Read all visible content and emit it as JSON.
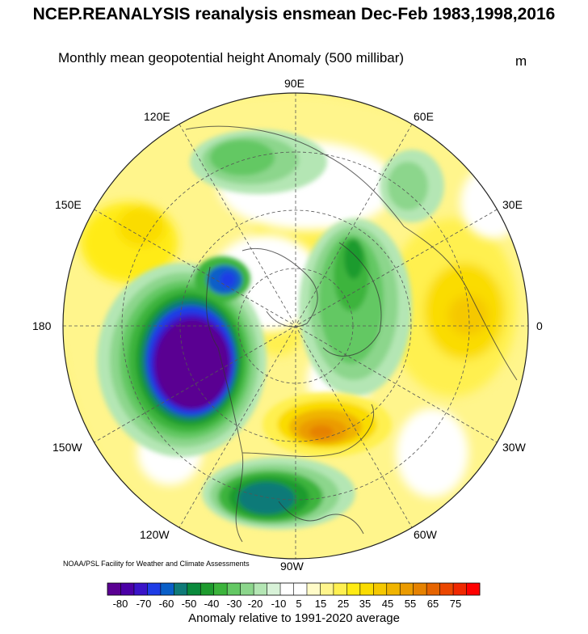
{
  "header": {
    "title": "NCEP.REANALYSIS reanalysis ensmean Dec-Feb 1983,1998,2016",
    "subtitle": "Monthly mean geopotential height Anomaly (500 millibar)",
    "units": "m"
  },
  "map": {
    "projection": "north polar stereographic",
    "lon_labels": [
      "90E",
      "60E",
      "30E",
      "0",
      "30W",
      "60W",
      "90W",
      "120W",
      "150W",
      "180",
      "150E",
      "120E"
    ]
  },
  "credit": "NOAA/PSL Facility for Weather and Climate Assessments",
  "colorbar": {
    "labels": [
      "-80",
      "-70",
      "-60",
      "-50",
      "-40",
      "-30",
      "-20",
      "-10",
      "5",
      "15",
      "25",
      "35",
      "45",
      "55",
      "65",
      "75"
    ],
    "colors": [
      "#5a0092",
      "#4b00a6",
      "#3a14c8",
      "#1e3ce6",
      "#0a5fc8",
      "#0f7a78",
      "#0a8a3c",
      "#1e9b2e",
      "#3cb43c",
      "#64c864",
      "#8cd68c",
      "#b4e6b4",
      "#d8f2d8",
      "#ffffff",
      "#ffffff",
      "#fffbc8",
      "#fff58c",
      "#fff050",
      "#ffeb14",
      "#fadc00",
      "#f5c800",
      "#f0b400",
      "#eb9b00",
      "#e68200",
      "#e66400",
      "#eb4600",
      "#f02800",
      "#ff0000"
    ],
    "title": "Anomaly relative to 1991-2020 average"
  }
}
